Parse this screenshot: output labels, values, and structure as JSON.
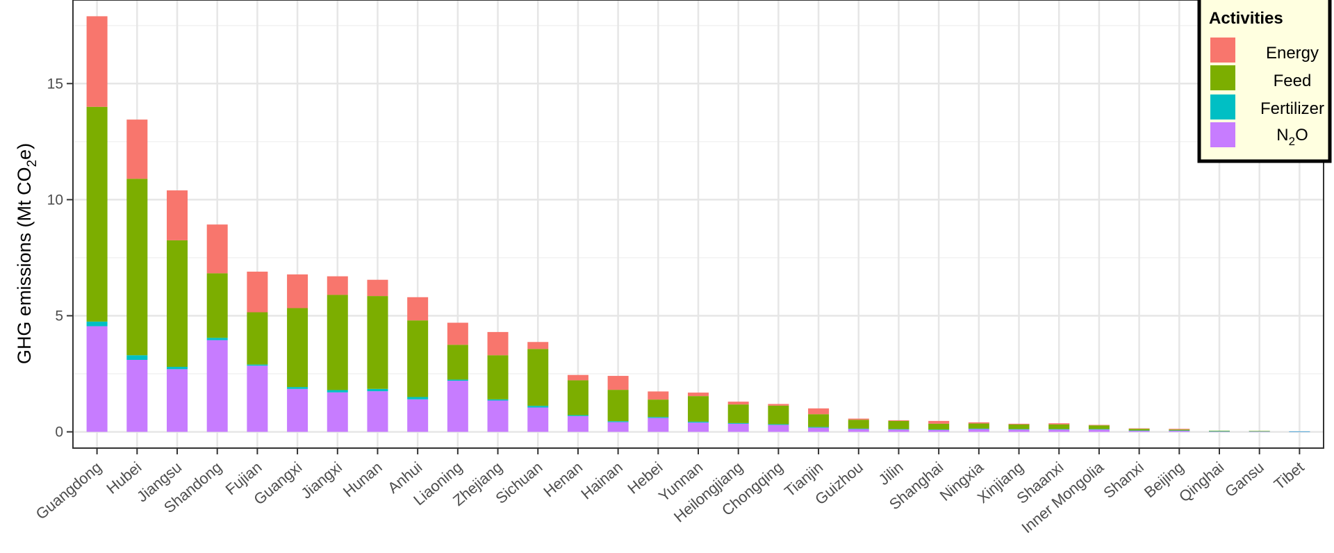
{
  "chart_data": {
    "type": "bar",
    "stacked": true,
    "ylabel_prefix": "GHG emissions  (Mt CO",
    "ylabel_sub": "2",
    "ylabel_suffix": "e)",
    "yticks": [
      0,
      5,
      10,
      15
    ],
    "ylim": [
      -0.7,
      18.6
    ],
    "grid": true,
    "legend": {
      "title": "Activities",
      "placement": "top-right",
      "entries": [
        {
          "label": "Energy",
          "color": "#F8766D"
        },
        {
          "label": "Feed",
          "color": "#7CAE00"
        },
        {
          "label": "Fertilizer",
          "color": "#00BFC4"
        },
        {
          "label_main": "N",
          "label_sub": "2",
          "label_tail": "O",
          "color": "#C77CFF"
        }
      ]
    },
    "categories": [
      "Guangdong",
      "Hubei",
      "Jiangsu",
      "Shandong",
      "Fujian",
      "Guangxi",
      "Jiangxi",
      "Hunan",
      "Anhui",
      "Liaoning",
      "Zhejiang",
      "Sichuan",
      "Henan",
      "Hainan",
      "Hebei",
      "Yunnan",
      "Heilongjiang",
      "Chongqing",
      "Tianjin",
      "Guizhou",
      "Jilin",
      "Shanghai",
      "Ningxia",
      "Xinjiang",
      "Shaanxi",
      "Inner Mongolia",
      "Shanxi",
      "Beijing",
      "Qinghai",
      "Gansu",
      "Tibet"
    ],
    "series": [
      {
        "name": "N2O",
        "color": "#C77CFF",
        "values": [
          4.55,
          3.1,
          2.7,
          3.95,
          2.85,
          1.85,
          1.7,
          1.75,
          1.4,
          2.2,
          1.35,
          1.05,
          0.68,
          0.42,
          0.6,
          0.4,
          0.35,
          0.3,
          0.18,
          0.12,
          0.1,
          0.08,
          0.12,
          0.1,
          0.1,
          0.1,
          0.05,
          0.05,
          0.02,
          0.02,
          0.01
        ]
      },
      {
        "name": "Fertilizer",
        "color": "#00BFC4",
        "values": [
          0.2,
          0.2,
          0.1,
          0.1,
          0.05,
          0.08,
          0.1,
          0.1,
          0.1,
          0.05,
          0.05,
          0.07,
          0.04,
          0.04,
          0.04,
          0.04,
          0.03,
          0.03,
          0.03,
          0.02,
          0.02,
          0.02,
          0.02,
          0.02,
          0.02,
          0.02,
          0.01,
          0.01,
          0.01,
          0.01,
          0.01
        ]
      },
      {
        "name": "Feed",
        "color": "#7CAE00",
        "values": [
          9.25,
          7.6,
          5.45,
          2.78,
          2.25,
          3.4,
          4.1,
          4.0,
          3.3,
          1.5,
          1.9,
          2.45,
          1.5,
          1.35,
          0.75,
          1.1,
          0.8,
          0.8,
          0.55,
          0.38,
          0.35,
          0.25,
          0.22,
          0.2,
          0.2,
          0.16,
          0.07,
          0.04,
          0.02,
          0.01,
          0.0
        ]
      },
      {
        "name": "Energy",
        "color": "#F8766D",
        "values": [
          3.9,
          2.55,
          2.15,
          2.1,
          1.75,
          1.45,
          0.8,
          0.7,
          1.0,
          0.95,
          1.0,
          0.3,
          0.23,
          0.6,
          0.35,
          0.15,
          0.12,
          0.07,
          0.25,
          0.05,
          0.03,
          0.12,
          0.05,
          0.03,
          0.05,
          0.02,
          0.02,
          0.03,
          0.0,
          0.0,
          0.0
        ]
      }
    ]
  }
}
